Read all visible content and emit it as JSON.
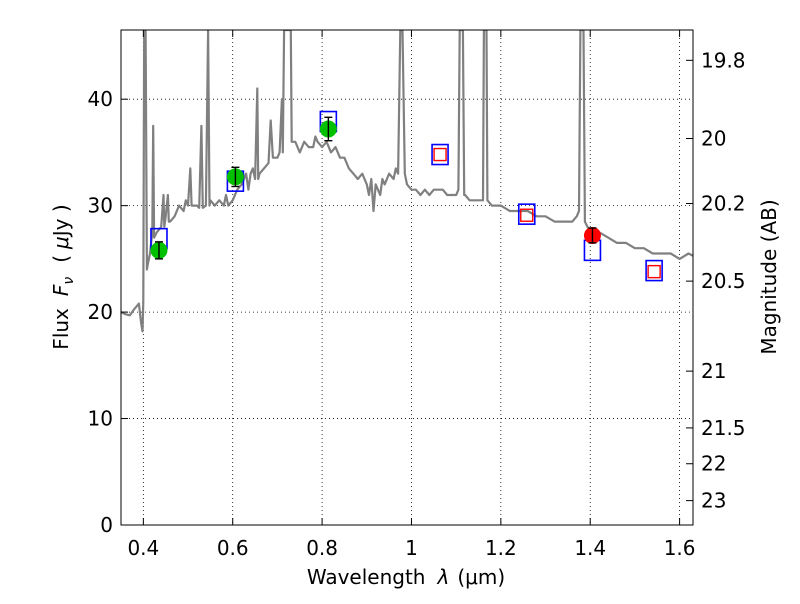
{
  "chart_data": {
    "type": "line",
    "title": "",
    "xlabel": "Wavelength  λ (μm)",
    "ylabel": "Flux  F_ν  ( μJy )",
    "ylabel_parts": {
      "prefix": "Flux",
      "symbol": "F",
      "subscript": "ν",
      "unit_open": "(",
      "unit_mu": "μ",
      "unit_rest": "Jy )"
    },
    "xlabel_parts": {
      "prefix": "Wavelength",
      "symbol": "λ",
      "unit": "(μm)"
    },
    "y2label": "Magnitude (AB)",
    "xlim": [
      0.35,
      1.63
    ],
    "ylim": [
      0,
      46.5
    ],
    "grid": true,
    "x_ticks": [
      {
        "value": 0.4,
        "label": "0.4"
      },
      {
        "value": 0.6,
        "label": "0.6"
      },
      {
        "value": 0.8,
        "label": "0.8"
      },
      {
        "value": 1.0,
        "label": "1"
      },
      {
        "value": 1.2,
        "label": "1.2"
      },
      {
        "value": 1.4,
        "label": "1.4"
      },
      {
        "value": 1.6,
        "label": "1.6"
      }
    ],
    "y_ticks": [
      {
        "value": 0,
        "label": "0"
      },
      {
        "value": 10,
        "label": "10"
      },
      {
        "value": 20,
        "label": "20"
      },
      {
        "value": 30,
        "label": "30"
      },
      {
        "value": 40,
        "label": "40"
      }
    ],
    "mag_ticks": [
      {
        "value": 19.8,
        "label": "19.8"
      },
      {
        "value": 20,
        "label": "20"
      },
      {
        "value": 20.2,
        "label": "20.2"
      },
      {
        "value": 20.5,
        "label": "20.5"
      },
      {
        "value": 21,
        "label": "21"
      },
      {
        "value": 21.5,
        "label": "21.5"
      },
      {
        "value": 22,
        "label": "22"
      },
      {
        "value": 23,
        "label": "23"
      }
    ],
    "model_spectrum": {
      "name": "model SED",
      "color": "#808080",
      "points": [
        [
          0.35,
          20.0
        ],
        [
          0.36,
          19.8
        ],
        [
          0.37,
          19.7
        ],
        [
          0.38,
          20.3
        ],
        [
          0.39,
          20.8
        ],
        [
          0.395,
          19.0
        ],
        [
          0.398,
          18.2
        ],
        [
          0.4,
          21.0
        ],
        [
          0.402,
          46.5
        ],
        [
          0.405,
          46.5
        ],
        [
          0.408,
          24.0
        ],
        [
          0.41,
          24.5
        ],
        [
          0.415,
          25.5
        ],
        [
          0.42,
          27.5
        ],
        [
          0.422,
          37.5
        ],
        [
          0.424,
          27.0
        ],
        [
          0.43,
          27.5
        ],
        [
          0.44,
          28.0
        ],
        [
          0.445,
          31.0
        ],
        [
          0.447,
          28.0
        ],
        [
          0.45,
          29.0
        ],
        [
          0.455,
          31.0
        ],
        [
          0.457,
          28.5
        ],
        [
          0.46,
          28.5
        ],
        [
          0.47,
          29.0
        ],
        [
          0.48,
          30.0
        ],
        [
          0.49,
          29.5
        ],
        [
          0.495,
          30.5
        ],
        [
          0.5,
          30.0
        ],
        [
          0.505,
          33.5
        ],
        [
          0.508,
          30.0
        ],
        [
          0.52,
          30.0
        ],
        [
          0.525,
          29.8
        ],
        [
          0.53,
          37.5
        ],
        [
          0.533,
          29.8
        ],
        [
          0.54,
          30.0
        ],
        [
          0.545,
          46.5
        ],
        [
          0.548,
          30.0
        ],
        [
          0.55,
          30.5
        ],
        [
          0.56,
          30.0
        ],
        [
          0.57,
          30.5
        ],
        [
          0.58,
          30.0
        ],
        [
          0.585,
          31.0
        ],
        [
          0.59,
          30.0
        ],
        [
          0.6,
          30.5
        ],
        [
          0.61,
          31.5
        ],
        [
          0.62,
          32.0
        ],
        [
          0.63,
          33.0
        ],
        [
          0.635,
          31.5
        ],
        [
          0.64,
          33.0
        ],
        [
          0.645,
          33.5
        ],
        [
          0.65,
          32.5
        ],
        [
          0.655,
          41.0
        ],
        [
          0.657,
          32.5
        ],
        [
          0.66,
          33.0
        ],
        [
          0.67,
          33.5
        ],
        [
          0.68,
          34.0
        ],
        [
          0.685,
          38.0
        ],
        [
          0.69,
          34.5
        ],
        [
          0.7,
          34.5
        ],
        [
          0.705,
          35.0
        ],
        [
          0.71,
          40.0
        ],
        [
          0.712,
          35.0
        ],
        [
          0.715,
          46.5
        ],
        [
          0.73,
          46.5
        ],
        [
          0.732,
          36.0
        ],
        [
          0.74,
          36.0
        ],
        [
          0.75,
          35.0
        ],
        [
          0.76,
          36.0
        ],
        [
          0.77,
          35.5
        ],
        [
          0.78,
          35.5
        ],
        [
          0.785,
          36.5
        ],
        [
          0.79,
          36.0
        ],
        [
          0.8,
          35.5
        ],
        [
          0.81,
          36.0
        ],
        [
          0.82,
          35.0
        ],
        [
          0.83,
          35.5
        ],
        [
          0.84,
          34.5
        ],
        [
          0.85,
          34.5
        ],
        [
          0.86,
          33.5
        ],
        [
          0.87,
          33.0
        ],
        [
          0.88,
          32.5
        ],
        [
          0.89,
          33.0
        ],
        [
          0.9,
          32.0
        ],
        [
          0.905,
          31.0
        ],
        [
          0.91,
          32.5
        ],
        [
          0.915,
          29.5
        ],
        [
          0.92,
          32.0
        ],
        [
          0.93,
          31.0
        ],
        [
          0.935,
          32.5
        ],
        [
          0.94,
          32.0
        ],
        [
          0.95,
          33.0
        ],
        [
          0.96,
          32.5
        ],
        [
          0.965,
          33.5
        ],
        [
          0.97,
          33.0
        ],
        [
          0.975,
          46.5
        ],
        [
          0.98,
          46.5
        ],
        [
          0.985,
          33.0
        ],
        [
          0.99,
          32.0
        ],
        [
          1.0,
          31.5
        ],
        [
          1.01,
          31.5
        ],
        [
          1.02,
          31.0
        ],
        [
          1.03,
          31.5
        ],
        [
          1.04,
          31.0
        ],
        [
          1.05,
          31.5
        ],
        [
          1.06,
          31.5
        ],
        [
          1.07,
          31.5
        ],
        [
          1.08,
          31.0
        ],
        [
          1.09,
          31.0
        ],
        [
          1.1,
          31.0
        ],
        [
          1.105,
          31.5
        ],
        [
          1.108,
          46.5
        ],
        [
          1.115,
          46.5
        ],
        [
          1.118,
          31.0
        ],
        [
          1.12,
          31.0
        ],
        [
          1.13,
          30.5
        ],
        [
          1.14,
          30.5
        ],
        [
          1.15,
          30.5
        ],
        [
          1.16,
          30.5
        ],
        [
          1.162,
          46.5
        ],
        [
          1.168,
          46.5
        ],
        [
          1.17,
          30.5
        ],
        [
          1.18,
          30.0
        ],
        [
          1.19,
          30.0
        ],
        [
          1.2,
          30.0
        ],
        [
          1.22,
          29.5
        ],
        [
          1.24,
          29.5
        ],
        [
          1.26,
          29.5
        ],
        [
          1.28,
          29.0
        ],
        [
          1.3,
          29.0
        ],
        [
          1.32,
          28.5
        ],
        [
          1.34,
          28.5
        ],
        [
          1.36,
          28.5
        ],
        [
          1.37,
          29.0
        ],
        [
          1.375,
          29.5
        ],
        [
          1.378,
          46.5
        ],
        [
          1.385,
          46.5
        ],
        [
          1.388,
          28.5
        ],
        [
          1.4,
          27.5
        ],
        [
          1.42,
          27.5
        ],
        [
          1.44,
          27.0
        ],
        [
          1.46,
          26.5
        ],
        [
          1.48,
          26.5
        ],
        [
          1.5,
          26.0
        ],
        [
          1.52,
          26.0
        ],
        [
          1.54,
          25.5
        ],
        [
          1.56,
          25.5
        ],
        [
          1.58,
          25.5
        ],
        [
          1.6,
          25.0
        ],
        [
          1.62,
          25.5
        ],
        [
          1.63,
          25.3
        ]
      ]
    },
    "series": [
      {
        "name": "observed (green)",
        "color": "#00c000",
        "points": [
          {
            "x": 0.435,
            "y": 25.8,
            "err": 0.8
          },
          {
            "x": 0.606,
            "y": 32.7,
            "err": 0.9
          },
          {
            "x": 0.814,
            "y": 37.2,
            "err": 1.1
          }
        ]
      },
      {
        "name": "observed (red)",
        "color": "#ff0000",
        "points": [
          {
            "x": 1.405,
            "y": 27.2,
            "err": 0.7
          }
        ]
      },
      {
        "name": "model synthetic photometry (blue squares)",
        "color": "#0000ff",
        "points": [
          {
            "x": 0.435,
            "y": 26.9
          },
          {
            "x": 0.606,
            "y": 32.3
          },
          {
            "x": 0.814,
            "y": 37.9
          },
          {
            "x": 1.064,
            "y": 34.8
          },
          {
            "x": 1.258,
            "y": 29.2
          },
          {
            "x": 1.405,
            "y": 25.8
          },
          {
            "x": 1.543,
            "y": 23.9
          }
        ]
      },
      {
        "name": "predicted (red open squares)",
        "color": "#ff0000",
        "points": [
          {
            "x": 1.064,
            "y": 34.8
          },
          {
            "x": 1.258,
            "y": 29.1
          },
          {
            "x": 1.543,
            "y": 23.8
          }
        ]
      }
    ]
  }
}
